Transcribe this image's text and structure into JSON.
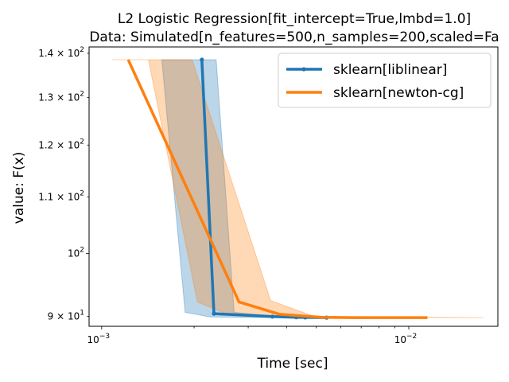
{
  "chart_data": {
    "type": "line",
    "title_lines": [
      "L2 Logistic Regression[fit_intercept=True,lmbd=1.0]",
      "Data: Simulated[n_features=500,n_samples=200,scaled=Fa"
    ],
    "xlabel": "Time [sec]",
    "ylabel": "value: F(x)",
    "xscale": "log",
    "yscale": "log",
    "xlim": [
      0.00091,
      0.0195
    ],
    "ylim": [
      88.5,
      141.5
    ],
    "x_ticks": [
      {
        "value": 0.001,
        "label": "10",
        "exp": "−3"
      },
      {
        "value": 0.01,
        "label": "10",
        "exp": "−2"
      }
    ],
    "y_ticks": [
      {
        "value": 90,
        "mantissa": "9 × 10",
        "exp": "1"
      },
      {
        "value": 100,
        "mantissa": "10",
        "exp": "2"
      },
      {
        "value": 110,
        "mantissa": "1.1 × 10",
        "exp": "2"
      },
      {
        "value": 120,
        "mantissa": "1.2 × 10",
        "exp": "2"
      },
      {
        "value": 130,
        "mantissa": "1.3 × 10",
        "exp": "2"
      },
      {
        "value": 140,
        "mantissa": "1.4 × 10",
        "exp": "2"
      }
    ],
    "legend_position": "upper right",
    "grid": false,
    "series": [
      {
        "name": "sklearn[liblinear]",
        "color": "#1f77b4",
        "marker": "dot",
        "x": [
          0.00212,
          0.00232,
          0.0036,
          0.0043,
          0.0046,
          0.0054
        ],
        "y": [
          138.5,
          90.4,
          89.95,
          89.85,
          89.82,
          89.8
        ],
        "band_upper": [
          [
            0.00157,
            138.5
          ],
          [
            0.00236,
            138.5
          ],
          [
            0.0027,
            90.6
          ],
          [
            0.0037,
            90.0
          ],
          [
            0.0054,
            89.8
          ]
        ],
        "band_lower": [
          [
            0.00187,
            90.6
          ],
          [
            0.00226,
            89.9
          ],
          [
            0.0036,
            89.8
          ],
          [
            0.0054,
            89.8
          ]
        ]
      },
      {
        "name": "sklearn[newton-cg]",
        "color": "#ff7f0e",
        "marker": "none",
        "x": [
          0.00122,
          0.0028,
          0.0038,
          0.0052,
          0.0065,
          0.0115
        ],
        "y": [
          138.5,
          92.2,
          90.3,
          89.85,
          89.8,
          89.8
        ],
        "band_upper": [
          [
            0.00108,
            138.5
          ],
          [
            0.00197,
            138.5
          ],
          [
            0.00355,
            92.4
          ],
          [
            0.0049,
            90.0
          ],
          [
            0.0175,
            89.8
          ]
        ],
        "band_lower": [
          [
            0.00142,
            138.5
          ],
          [
            0.00205,
            92.2
          ],
          [
            0.0026,
            90.2
          ],
          [
            0.0045,
            89.85
          ],
          [
            0.0175,
            89.8
          ]
        ]
      }
    ]
  }
}
